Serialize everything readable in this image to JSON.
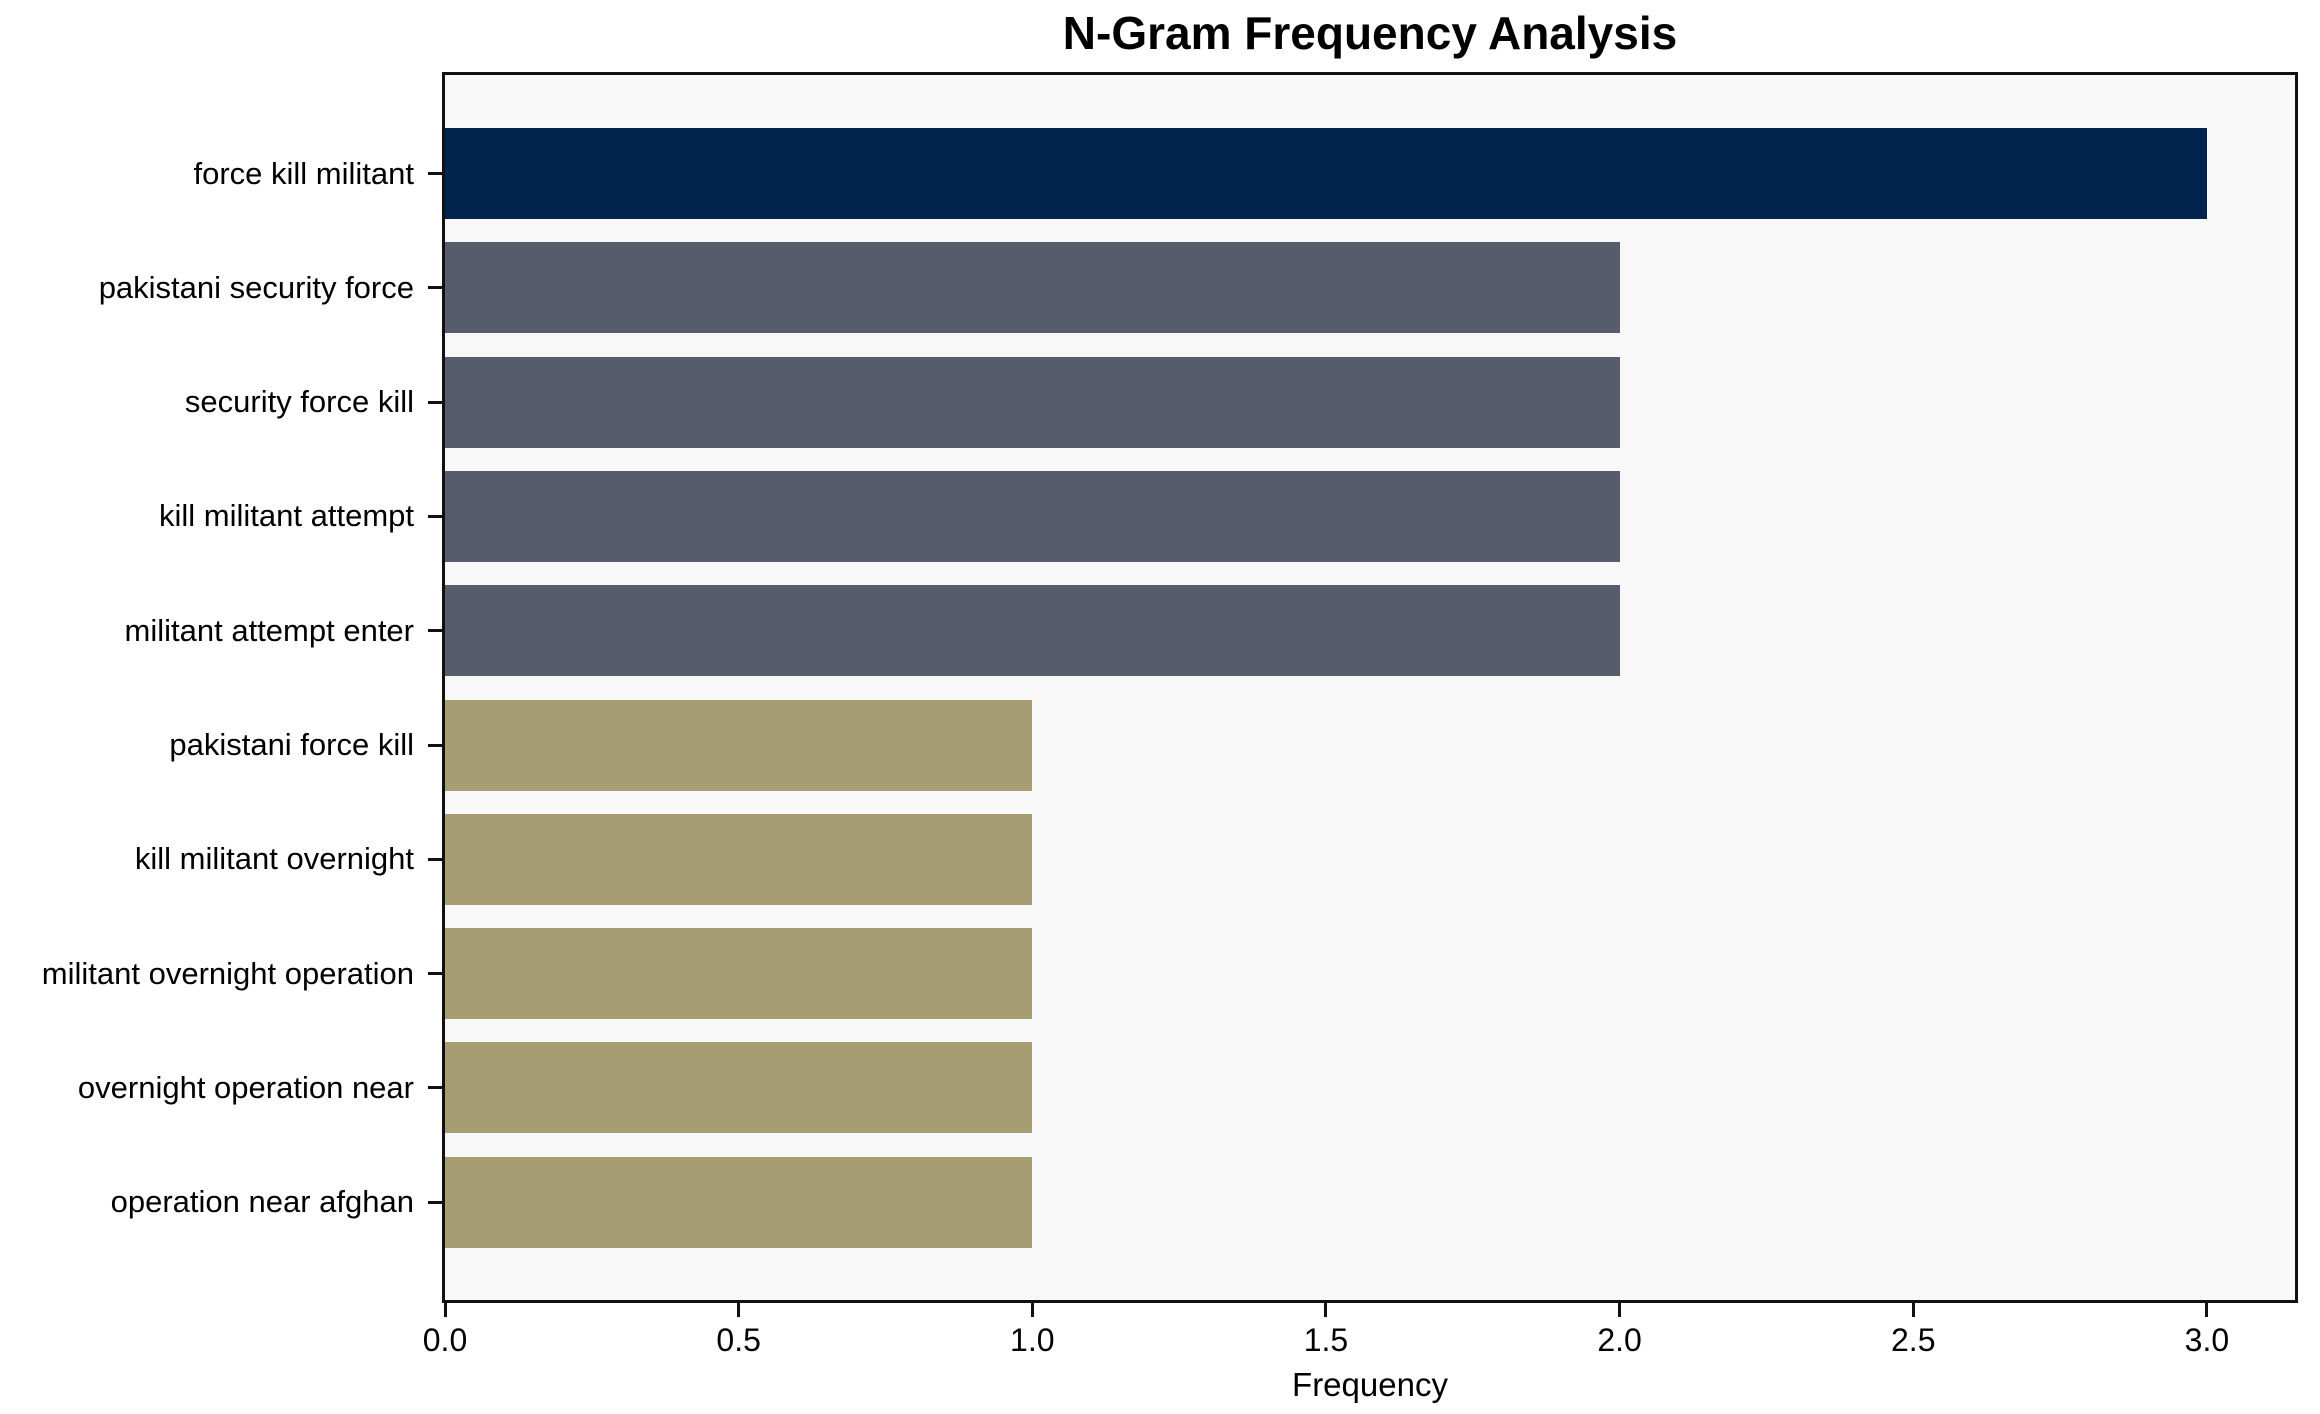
{
  "chart_data": {
    "type": "bar",
    "orientation": "horizontal",
    "title": "N-Gram Frequency Analysis",
    "xlabel": "Frequency",
    "ylabel": "",
    "categories": [
      "force kill militant",
      "pakistani security force",
      "security force kill",
      "kill militant attempt",
      "militant attempt enter",
      "pakistani force kill",
      "kill militant overnight",
      "militant overnight operation",
      "overnight operation near",
      "operation near afghan"
    ],
    "values": [
      3,
      2,
      2,
      2,
      2,
      1,
      1,
      1,
      1,
      1
    ],
    "bar_colors": [
      "#02234d",
      "#565c6b",
      "#565c6b",
      "#565c6b",
      "#565c6b",
      "#a69d72",
      "#a69d72",
      "#a69d72",
      "#a69d72",
      "#a69d72"
    ],
    "x_ticks": [
      0.0,
      0.5,
      1.0,
      1.5,
      2.0,
      2.5,
      3.0
    ],
    "x_tick_labels": [
      "0.0",
      "0.5",
      "1.0",
      "1.5",
      "2.0",
      "2.5",
      "3.0"
    ],
    "xlim": [
      0,
      3.15
    ],
    "grid": false,
    "legend": null,
    "colors": {
      "plot_background": "#f8f8f9",
      "figure_background": "#ffffff",
      "spine": "#111111",
      "text": "#000000"
    }
  }
}
